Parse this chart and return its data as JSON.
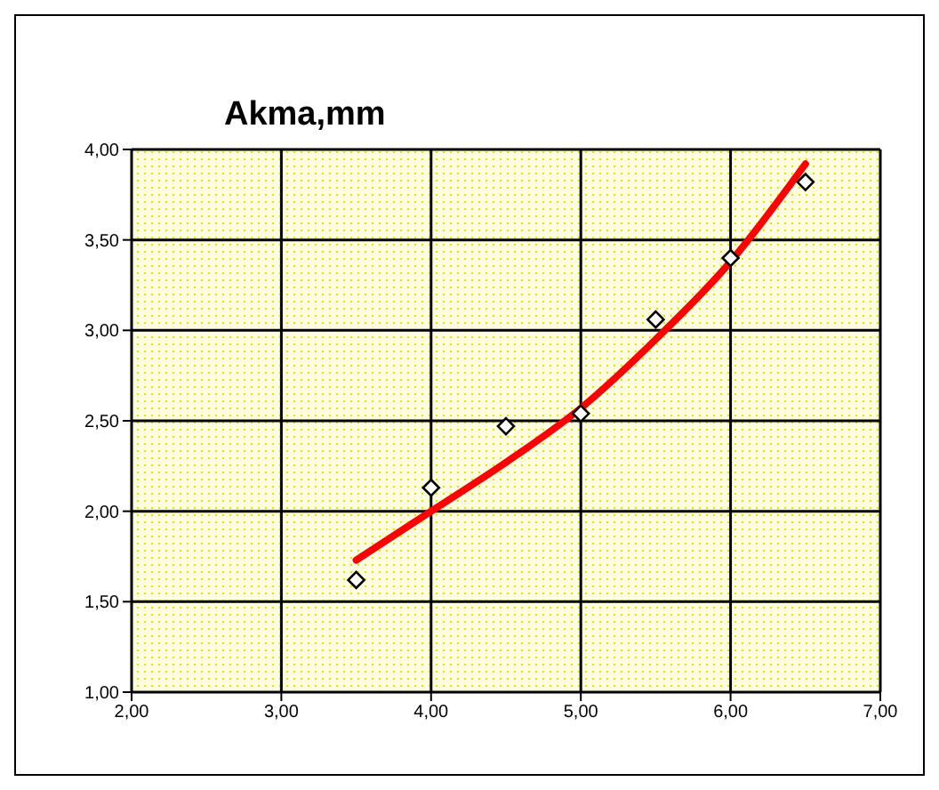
{
  "chart_data": {
    "type": "scatter",
    "title": "Akma,mm",
    "series": [
      {
        "color": "#000000",
        "marker": "diamond",
        "x": [
          3.5,
          4.0,
          4.5,
          5.0,
          5.5,
          6.0,
          6.5
        ],
        "values": [
          1.62,
          2.13,
          2.47,
          2.54,
          3.06,
          3.4,
          3.82
        ]
      },
      {
        "type": "line",
        "color": "#ff0000",
        "marker": "none",
        "x": [
          3.5,
          4.0,
          4.5,
          5.0,
          5.5,
          6.0,
          6.5
        ],
        "values": [
          1.73,
          2.0,
          2.27,
          2.57,
          2.95,
          3.38,
          3.92
        ]
      }
    ],
    "xlim": [
      2,
      7
    ],
    "ylim": [
      1,
      4
    ],
    "xticks": [
      {
        "value": 2,
        "label": "2,00"
      },
      {
        "value": 3,
        "label": "3,00"
      },
      {
        "value": 4,
        "label": "4,00"
      },
      {
        "value": 5,
        "label": "5,00"
      },
      {
        "value": 6,
        "label": "6,00"
      },
      {
        "value": 7,
        "label": "7,00"
      }
    ],
    "yticks": [
      {
        "value": 1,
        "label": "1,00"
      },
      {
        "value": 1.5,
        "label": "1,50"
      },
      {
        "value": 2,
        "label": "2,00"
      },
      {
        "value": 2.5,
        "label": "2,50"
      },
      {
        "value": 3,
        "label": "3,00"
      },
      {
        "value": 3.5,
        "label": "3,50"
      },
      {
        "value": 4,
        "label": "4,00"
      }
    ],
    "grid": true,
    "legend": false
  }
}
